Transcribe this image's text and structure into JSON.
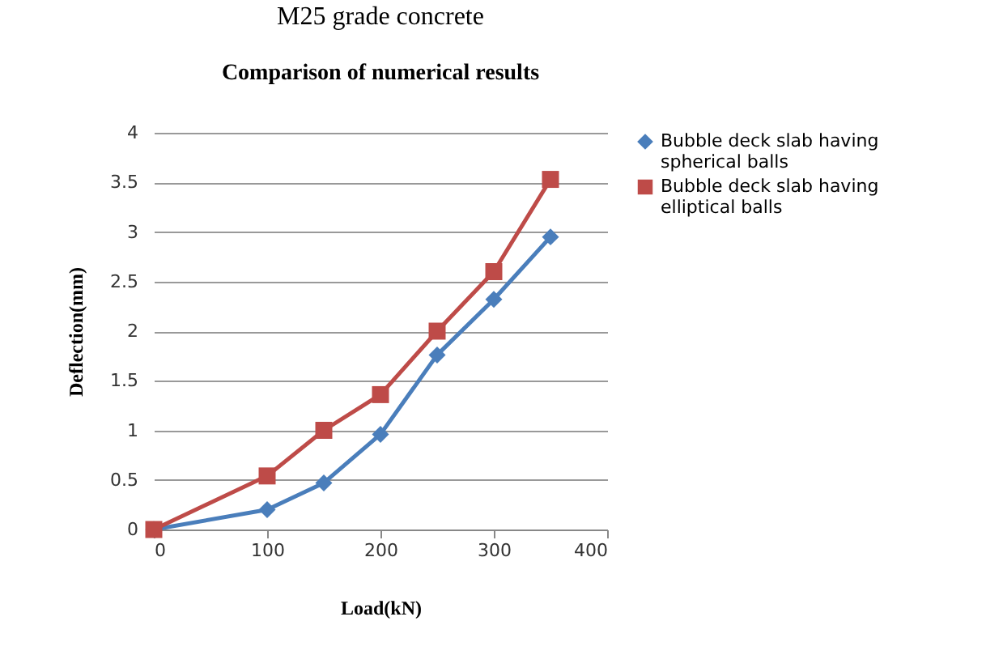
{
  "chart_data": {
    "type": "line",
    "title": "Comparison  of numerical  results",
    "xlabel": "Load(kN)",
    "ylabel": "Deflection(mm)",
    "annotations": [
      "M25 grade concrete"
    ],
    "x": [
      0,
      100,
      150,
      200,
      250,
      300,
      350
    ],
    "series": [
      {
        "name": "Bubble deck slab having spherical balls",
        "color": "#4a7ebb",
        "marker": "diamond",
        "values": [
          0,
          0.2,
          0.47,
          0.96,
          1.76,
          2.32,
          2.95
        ]
      },
      {
        "name": "Bubble deck slab having elliptical balls",
        "color": "#be4b48",
        "marker": "square",
        "values": [
          0,
          0.54,
          1.0,
          1.36,
          2.0,
          2.6,
          3.53
        ]
      }
    ],
    "xlim": [
      0,
      400
    ],
    "xticks": [
      0,
      100,
      200,
      300,
      400
    ],
    "ylim": [
      0,
      4
    ],
    "yticks": [
      0,
      0.5,
      1,
      1.5,
      2,
      2.5,
      3,
      3.5,
      4
    ],
    "grid": "y",
    "legend": "right",
    "line_style": "solid"
  }
}
